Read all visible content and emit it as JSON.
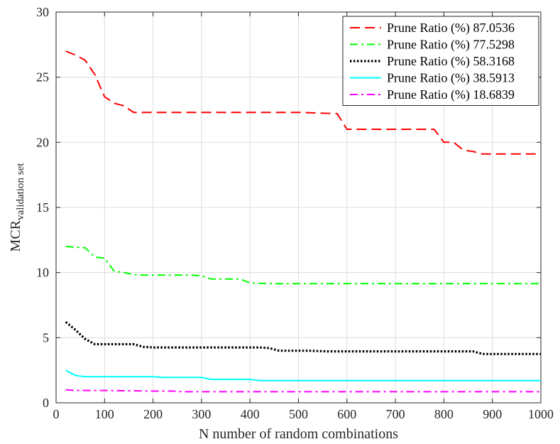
{
  "chart_data": {
    "type": "line",
    "xlabel": "N number of random combinations",
    "ylabel_main": "MCR",
    "ylabel_sub": "validation set",
    "xlim": [
      0,
      1000
    ],
    "ylim": [
      0,
      30
    ],
    "xticks": [
      0,
      100,
      200,
      300,
      400,
      500,
      600,
      700,
      800,
      900,
      1000
    ],
    "yticks": [
      0,
      5,
      10,
      15,
      20,
      25,
      30
    ],
    "grid": true,
    "legend_position": "top-right",
    "series": [
      {
        "name": "Prune Ratio (%) 87.0536",
        "color": "#ff0000",
        "style": "dashed",
        "points": [
          [
            20,
            27.0
          ],
          [
            40,
            26.7
          ],
          [
            60,
            26.3
          ],
          [
            80,
            25.2
          ],
          [
            100,
            23.5
          ],
          [
            120,
            23.0
          ],
          [
            140,
            22.8
          ],
          [
            160,
            22.3
          ],
          [
            200,
            22.3
          ],
          [
            300,
            22.3
          ],
          [
            400,
            22.3
          ],
          [
            500,
            22.3
          ],
          [
            580,
            22.2
          ],
          [
            600,
            21.0
          ],
          [
            700,
            21.0
          ],
          [
            780,
            21.0
          ],
          [
            800,
            20.0
          ],
          [
            820,
            20.0
          ],
          [
            840,
            19.4
          ],
          [
            860,
            19.3
          ],
          [
            880,
            19.1
          ],
          [
            900,
            19.1
          ],
          [
            1000,
            19.1
          ]
        ]
      },
      {
        "name": "Prune Ratio (%) 77.5298",
        "color": "#00ff00",
        "style": "dashdot",
        "points": [
          [
            20,
            12.0
          ],
          [
            60,
            11.9
          ],
          [
            80,
            11.2
          ],
          [
            100,
            11.1
          ],
          [
            120,
            10.1
          ],
          [
            140,
            10.0
          ],
          [
            160,
            9.85
          ],
          [
            180,
            9.8
          ],
          [
            200,
            9.8
          ],
          [
            280,
            9.8
          ],
          [
            300,
            9.75
          ],
          [
            320,
            9.5
          ],
          [
            380,
            9.5
          ],
          [
            400,
            9.2
          ],
          [
            440,
            9.15
          ],
          [
            460,
            9.15
          ],
          [
            1000,
            9.15
          ]
        ]
      },
      {
        "name": "Prune Ratio (%) 58.3168",
        "color": "#000000",
        "style": "dotted",
        "points": [
          [
            20,
            6.2
          ],
          [
            40,
            5.6
          ],
          [
            60,
            4.9
          ],
          [
            80,
            4.5
          ],
          [
            160,
            4.5
          ],
          [
            180,
            4.3
          ],
          [
            200,
            4.25
          ],
          [
            420,
            4.25
          ],
          [
            440,
            4.2
          ],
          [
            460,
            4.0
          ],
          [
            520,
            4.0
          ],
          [
            560,
            3.95
          ],
          [
            860,
            3.95
          ],
          [
            880,
            3.75
          ],
          [
            1000,
            3.75
          ]
        ]
      },
      {
        "name": "Prune Ratio (%) 38.5913",
        "color": "#00ffff",
        "style": "solid",
        "points": [
          [
            20,
            2.5
          ],
          [
            40,
            2.1
          ],
          [
            60,
            2.0
          ],
          [
            200,
            2.0
          ],
          [
            220,
            1.95
          ],
          [
            300,
            1.95
          ],
          [
            320,
            1.8
          ],
          [
            400,
            1.8
          ],
          [
            420,
            1.7
          ],
          [
            1000,
            1.7
          ]
        ]
      },
      {
        "name": "Prune Ratio (%) 18.6839",
        "color": "#ff00ff",
        "style": "dashdot",
        "points": [
          [
            20,
            1.0
          ],
          [
            40,
            0.95
          ],
          [
            100,
            0.95
          ],
          [
            200,
            0.9
          ],
          [
            240,
            0.9
          ],
          [
            260,
            0.85
          ],
          [
            1000,
            0.85
          ]
        ]
      }
    ]
  }
}
